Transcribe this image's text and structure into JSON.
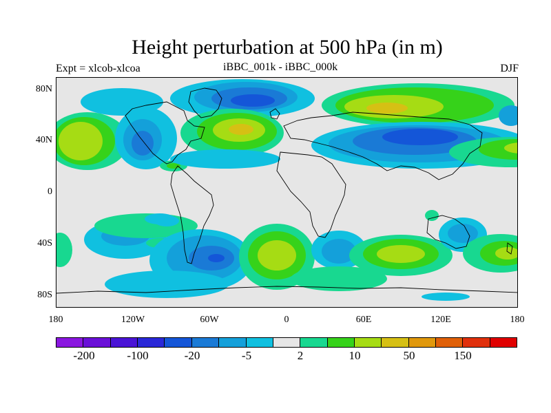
{
  "title": "Height perturbation at 500 hPa (in m)",
  "subtitle_left": "Expt = xlcob-xlcoa",
  "subtitle_center": "iBBC_001k - iBBC_000k",
  "subtitle_right": "DJF",
  "lat_labels": [
    "80N",
    "40N",
    "0",
    "40S",
    "80S"
  ],
  "lon_labels": [
    "180",
    "120W",
    "60W",
    "0",
    "60E",
    "120E",
    "180"
  ],
  "colorbar": {
    "colors": [
      "#8a17e0",
      "#6a10d8",
      "#4a14d6",
      "#2a28d8",
      "#1456d8",
      "#1a7ad6",
      "#14a0da",
      "#10c0e0",
      "#e6e6e6",
      "#18d890",
      "#36d21a",
      "#a6dc14",
      "#d6c014",
      "#e0980c",
      "#e06008",
      "#e0300c",
      "#e00000"
    ],
    "labels": [
      "-200",
      "-100",
      "-20",
      "-5",
      "2",
      "10",
      "50",
      "150"
    ]
  },
  "palette": {
    "neg_light": "#10c0e0",
    "neg_mid": "#14a0da",
    "neg_mid2": "#1a7ad6",
    "neg_strong": "#1456d8",
    "neutral": "#e6e6e6",
    "pos_light": "#18d890",
    "pos_mid": "#36d21a",
    "pos_strong": "#a6dc14",
    "pos_warm": "#d6c014"
  }
}
